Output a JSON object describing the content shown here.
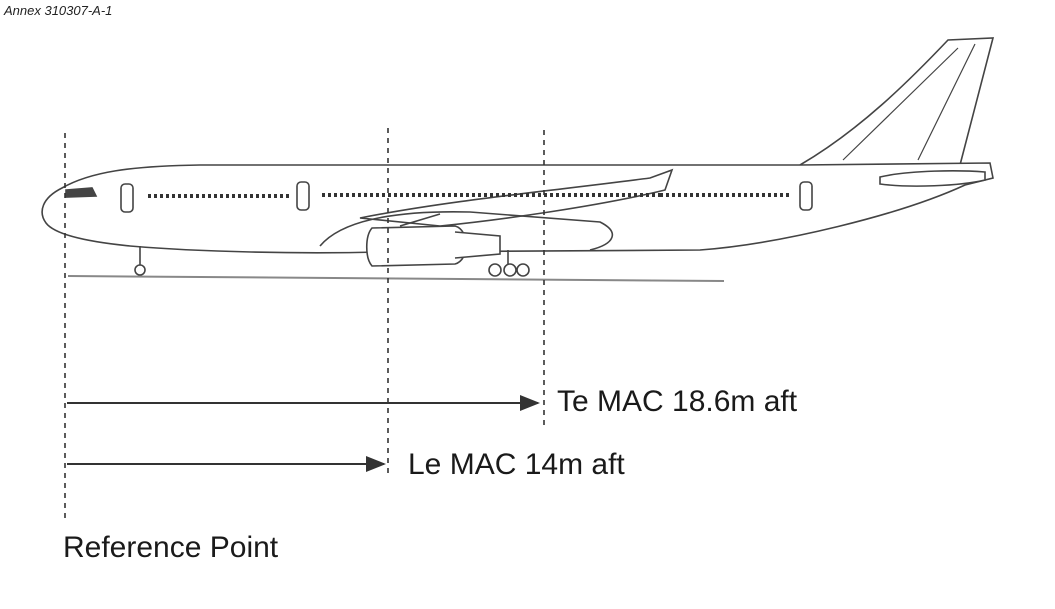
{
  "annex_label": "Annex 310307-A-1",
  "te_mac_label": "Te MAC 18.6m aft",
  "le_mac_label": "Le MAC 14m aft",
  "reference_label": "Reference Point",
  "colors": {
    "line": "#333333",
    "outline": "#444444",
    "background": "#ffffff"
  }
}
